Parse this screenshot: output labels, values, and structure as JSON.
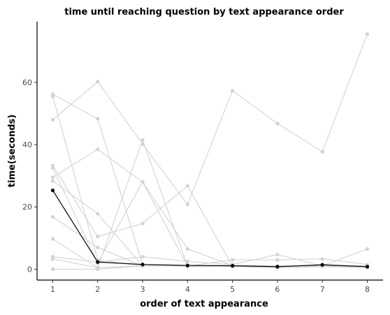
{
  "chart_data": {
    "type": "line",
    "title": "time until reaching question by text appearance order",
    "xlabel": "order of text appearance",
    "ylabel": "time(seconds)",
    "x": [
      1,
      2,
      3,
      4,
      5,
      6,
      7,
      8
    ],
    "xlim": [
      0.65,
      8.35
    ],
    "ylim": [
      -3.5,
      79.5
    ],
    "xticks": [
      "1",
      "2",
      "3",
      "4",
      "5",
      "6",
      "7",
      "8"
    ],
    "yticks": [
      0,
      20,
      40,
      60
    ],
    "grid": false,
    "legend": "none",
    "series_color": "#d3d3d3",
    "mean_color": "#000000",
    "series": [
      {
        "values": [
          48.0,
          60.2,
          40.2,
          20.8,
          57.3,
          46.8,
          37.7,
          75.5
        ]
      },
      {
        "values": [
          56.2,
          48.3,
          1.5,
          0.8,
          1.0,
          0.5,
          1.5,
          0.8
        ]
      },
      {
        "values": [
          55.5,
          3.0,
          1.0,
          1.0,
          0.8,
          0.5,
          0.8,
          0.5
        ]
      },
      {
        "values": [
          33.3,
          10.5,
          14.7,
          26.8,
          1.0,
          0.5,
          1.0,
          0.5
        ]
      },
      {
        "values": [
          32.5,
          2.0,
          28.0,
          1.0,
          1.2,
          0.8,
          1.2,
          0.8
        ]
      },
      {
        "values": [
          29.5,
          38.5,
          28.0,
          6.5,
          1.2,
          1.0,
          1.2,
          1.0
        ]
      },
      {
        "values": [
          28.3,
          17.8,
          1.0,
          1.0,
          1.0,
          1.0,
          1.0,
          1.0
        ]
      },
      {
        "values": [
          16.8,
          7.0,
          1.0,
          1.0,
          1.0,
          1.0,
          1.0,
          1.0
        ]
      },
      {
        "values": [
          9.7,
          0.5,
          41.5,
          1.0,
          1.0,
          1.0,
          1.0,
          1.0
        ]
      },
      {
        "values": [
          4.0,
          2.3,
          4.0,
          2.5,
          1.5,
          4.7,
          1.0,
          6.5
        ]
      },
      {
        "values": [
          3.3,
          0.5,
          1.0,
          1.0,
          3.0,
          3.0,
          3.3,
          1.5
        ]
      },
      {
        "values": [
          0.0,
          0.0,
          1.0,
          1.0,
          1.0,
          1.0,
          1.0,
          1.0
        ]
      }
    ],
    "mean_series": {
      "values": [
        25.3,
        2.3,
        1.5,
        1.2,
        1.1,
        0.8,
        1.4,
        0.8
      ]
    }
  }
}
